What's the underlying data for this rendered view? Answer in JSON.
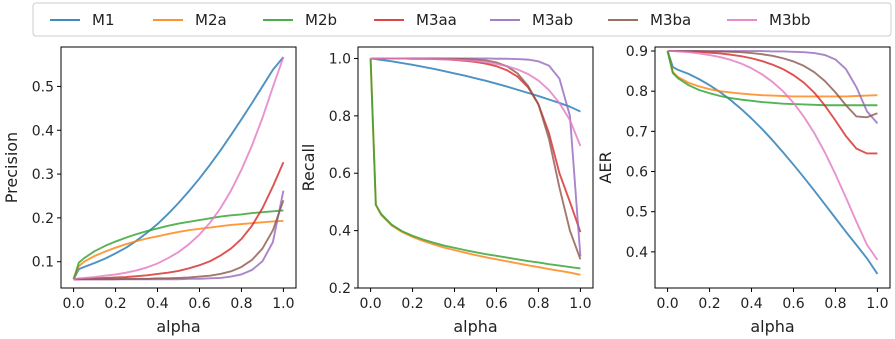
{
  "legend": {
    "entries": [
      {
        "name": "M1",
        "color": "#1f77b4"
      },
      {
        "name": "M2a",
        "color": "#ff7f0e"
      },
      {
        "name": "M2b",
        "color": "#2ca02c"
      },
      {
        "name": "M3aa",
        "color": "#d62728"
      },
      {
        "name": "M3ab",
        "color": "#9467bd"
      },
      {
        "name": "M3ba",
        "color": "#8c564b"
      },
      {
        "name": "M3bb",
        "color": "#e377c2"
      }
    ],
    "placement": "top"
  },
  "chart_data": [
    {
      "type": "line",
      "xlabel": "alpha",
      "ylabel": "Precision",
      "xlim": [
        -0.06,
        1.06
      ],
      "ylim": [
        0.04,
        0.59
      ],
      "xticks": [
        "0.0",
        "0.2",
        "0.4",
        "0.6",
        "0.8",
        "1.0"
      ],
      "xtick_values": [
        0,
        0.2,
        0.4,
        0.6,
        0.8,
        1.0
      ],
      "yticks": [
        "0.1",
        "0.2",
        "0.3",
        "0.4",
        "0.5"
      ],
      "ytick_values": [
        0.1,
        0.2,
        0.3,
        0.4,
        0.5
      ],
      "x": [
        0,
        0.025,
        0.05,
        0.1,
        0.15,
        0.2,
        0.25,
        0.3,
        0.35,
        0.4,
        0.45,
        0.5,
        0.55,
        0.6,
        0.65,
        0.7,
        0.75,
        0.8,
        0.85,
        0.9,
        0.95,
        1.0
      ],
      "series": [
        {
          "name": "M1",
          "values": [
            0.06,
            0.083,
            0.088,
            0.097,
            0.107,
            0.119,
            0.132,
            0.148,
            0.166,
            0.186,
            0.209,
            0.234,
            0.261,
            0.29,
            0.321,
            0.354,
            0.389,
            0.425,
            0.462,
            0.5,
            0.538,
            0.567
          ]
        },
        {
          "name": "M2a",
          "values": [
            0.06,
            0.09,
            0.1,
            0.113,
            0.123,
            0.132,
            0.14,
            0.147,
            0.153,
            0.158,
            0.163,
            0.168,
            0.172,
            0.175,
            0.178,
            0.181,
            0.184,
            0.186,
            0.188,
            0.19,
            0.192,
            0.193
          ]
        },
        {
          "name": "M2b",
          "values": [
            0.06,
            0.098,
            0.108,
            0.124,
            0.136,
            0.146,
            0.155,
            0.163,
            0.17,
            0.176,
            0.182,
            0.187,
            0.191,
            0.195,
            0.199,
            0.203,
            0.206,
            0.208,
            0.211,
            0.213,
            0.215,
            0.217
          ]
        },
        {
          "name": "M3aa",
          "values": [
            0.06,
            0.06,
            0.061,
            0.062,
            0.063,
            0.064,
            0.065,
            0.067,
            0.069,
            0.072,
            0.075,
            0.079,
            0.085,
            0.092,
            0.101,
            0.114,
            0.13,
            0.152,
            0.182,
            0.222,
            0.272,
            0.327
          ]
        },
        {
          "name": "M3ab",
          "values": [
            0.06,
            0.06,
            0.06,
            0.06,
            0.06,
            0.06,
            0.06,
            0.06,
            0.06,
            0.06,
            0.06,
            0.06,
            0.061,
            0.061,
            0.062,
            0.063,
            0.066,
            0.071,
            0.081,
            0.101,
            0.145,
            0.262
          ]
        },
        {
          "name": "M3ba",
          "values": [
            0.06,
            0.06,
            0.06,
            0.06,
            0.06,
            0.06,
            0.061,
            0.061,
            0.061,
            0.062,
            0.062,
            0.063,
            0.064,
            0.066,
            0.068,
            0.072,
            0.078,
            0.088,
            0.104,
            0.13,
            0.172,
            0.24
          ]
        },
        {
          "name": "M3bb",
          "values": [
            0.06,
            0.062,
            0.063,
            0.065,
            0.068,
            0.071,
            0.075,
            0.08,
            0.087,
            0.096,
            0.108,
            0.122,
            0.14,
            0.162,
            0.189,
            0.222,
            0.262,
            0.31,
            0.365,
            0.428,
            0.499,
            0.567
          ]
        }
      ]
    },
    {
      "type": "line",
      "xlabel": "alpha",
      "ylabel": "Recall",
      "xlim": [
        -0.06,
        1.06
      ],
      "ylim": [
        0.2,
        1.04
      ],
      "xticks": [
        "0.0",
        "0.2",
        "0.4",
        "0.6",
        "0.8",
        "1.0"
      ],
      "xtick_values": [
        0,
        0.2,
        0.4,
        0.6,
        0.8,
        1.0
      ],
      "yticks": [
        "0.2",
        "0.4",
        "0.6",
        "0.8",
        "1.0"
      ],
      "ytick_values": [
        0.2,
        0.4,
        0.6,
        0.8,
        1.0
      ],
      "x": [
        0,
        0.025,
        0.05,
        0.1,
        0.15,
        0.2,
        0.25,
        0.3,
        0.35,
        0.4,
        0.45,
        0.5,
        0.55,
        0.6,
        0.65,
        0.7,
        0.75,
        0.8,
        0.85,
        0.9,
        0.95,
        1.0
      ],
      "series": [
        {
          "name": "M1",
          "values": [
            1.0,
            0.998,
            0.995,
            0.99,
            0.984,
            0.978,
            0.971,
            0.964,
            0.956,
            0.948,
            0.94,
            0.931,
            0.922,
            0.912,
            0.902,
            0.891,
            0.88,
            0.869,
            0.857,
            0.845,
            0.832,
            0.815
          ]
        },
        {
          "name": "M2a",
          "values": [
            1.0,
            0.49,
            0.455,
            0.418,
            0.395,
            0.378,
            0.364,
            0.352,
            0.341,
            0.332,
            0.323,
            0.315,
            0.307,
            0.3,
            0.293,
            0.286,
            0.279,
            0.273,
            0.266,
            0.26,
            0.254,
            0.246
          ]
        },
        {
          "name": "M2b",
          "values": [
            1.0,
            0.49,
            0.458,
            0.421,
            0.398,
            0.382,
            0.369,
            0.358,
            0.348,
            0.34,
            0.332,
            0.325,
            0.318,
            0.312,
            0.306,
            0.3,
            0.294,
            0.289,
            0.283,
            0.278,
            0.273,
            0.268
          ]
        },
        {
          "name": "M3aa",
          "values": [
            1.0,
            1.0,
            1.0,
            1.0,
            1.0,
            0.999,
            0.999,
            0.998,
            0.997,
            0.995,
            0.992,
            0.988,
            0.982,
            0.973,
            0.959,
            0.937,
            0.9,
            0.84,
            0.74,
            0.6,
            0.5,
            0.395
          ]
        },
        {
          "name": "M3ab",
          "values": [
            1.0,
            1.0,
            1.0,
            1.0,
            1.0,
            1.0,
            1.0,
            1.0,
            1.0,
            1.0,
            1.0,
            1.0,
            1.0,
            0.999,
            0.999,
            0.998,
            0.996,
            0.99,
            0.975,
            0.93,
            0.8,
            0.31
          ]
        },
        {
          "name": "M3ba",
          "values": [
            1.0,
            1.0,
            1.0,
            1.0,
            1.0,
            1.0,
            1.0,
            1.0,
            0.999,
            0.999,
            0.998,
            0.996,
            0.993,
            0.986,
            0.973,
            0.948,
            0.905,
            0.84,
            0.72,
            0.55,
            0.4,
            0.3
          ]
        },
        {
          "name": "M3bb",
          "values": [
            1.0,
            1.0,
            1.0,
            1.0,
            1.0,
            0.999,
            0.999,
            0.998,
            0.997,
            0.996,
            0.994,
            0.991,
            0.987,
            0.981,
            0.973,
            0.962,
            0.946,
            0.923,
            0.89,
            0.845,
            0.785,
            0.695
          ]
        }
      ]
    },
    {
      "type": "line",
      "xlabel": "alpha",
      "ylabel": "AER",
      "xlim": [
        -0.06,
        1.06
      ],
      "ylim": [
        0.31,
        0.91
      ],
      "xticks": [
        "0.0",
        "0.2",
        "0.4",
        "0.6",
        "0.8",
        "1.0"
      ],
      "xtick_values": [
        0,
        0.2,
        0.4,
        0.6,
        0.8,
        1.0
      ],
      "yticks": [
        "0.4",
        "0.5",
        "0.6",
        "0.7",
        "0.8",
        "0.9"
      ],
      "ytick_values": [
        0.4,
        0.5,
        0.6,
        0.7,
        0.8,
        0.9
      ],
      "x": [
        0,
        0.025,
        0.05,
        0.1,
        0.15,
        0.2,
        0.25,
        0.3,
        0.35,
        0.4,
        0.45,
        0.5,
        0.55,
        0.6,
        0.65,
        0.7,
        0.75,
        0.8,
        0.85,
        0.9,
        0.95,
        1.0
      ],
      "series": [
        {
          "name": "M1",
          "values": [
            0.9,
            0.86,
            0.853,
            0.843,
            0.83,
            0.815,
            0.798,
            0.778,
            0.756,
            0.732,
            0.706,
            0.678,
            0.648,
            0.617,
            0.585,
            0.552,
            0.518,
            0.484,
            0.45,
            0.417,
            0.384,
            0.345
          ]
        },
        {
          "name": "M2a",
          "values": [
            0.9,
            0.848,
            0.835,
            0.821,
            0.812,
            0.805,
            0.8,
            0.797,
            0.794,
            0.792,
            0.79,
            0.789,
            0.788,
            0.787,
            0.787,
            0.787,
            0.787,
            0.787,
            0.787,
            0.788,
            0.789,
            0.79
          ]
        },
        {
          "name": "M2b",
          "values": [
            0.9,
            0.845,
            0.832,
            0.815,
            0.803,
            0.795,
            0.788,
            0.783,
            0.779,
            0.776,
            0.773,
            0.771,
            0.769,
            0.768,
            0.767,
            0.766,
            0.765,
            0.765,
            0.765,
            0.765,
            0.765,
            0.765
          ]
        },
        {
          "name": "M3aa",
          "values": [
            0.9,
            0.9,
            0.9,
            0.899,
            0.898,
            0.896,
            0.894,
            0.891,
            0.887,
            0.882,
            0.875,
            0.866,
            0.855,
            0.84,
            0.821,
            0.796,
            0.764,
            0.727,
            0.688,
            0.657,
            0.645,
            0.645
          ]
        },
        {
          "name": "M3ab",
          "values": [
            0.9,
            0.9,
            0.9,
            0.9,
            0.9,
            0.9,
            0.9,
            0.9,
            0.9,
            0.9,
            0.9,
            0.899,
            0.899,
            0.898,
            0.897,
            0.895,
            0.89,
            0.879,
            0.855,
            0.81,
            0.75,
            0.72
          ]
        },
        {
          "name": "M3ba",
          "values": [
            0.9,
            0.9,
            0.9,
            0.9,
            0.9,
            0.899,
            0.899,
            0.898,
            0.897,
            0.895,
            0.892,
            0.888,
            0.882,
            0.874,
            0.863,
            0.847,
            0.825,
            0.797,
            0.765,
            0.737,
            0.735,
            0.745
          ]
        },
        {
          "name": "M3bb",
          "values": [
            0.9,
            0.9,
            0.899,
            0.897,
            0.894,
            0.89,
            0.885,
            0.878,
            0.869,
            0.857,
            0.842,
            0.823,
            0.8,
            0.771,
            0.736,
            0.695,
            0.647,
            0.593,
            0.535,
            0.475,
            0.418,
            0.38
          ]
        }
      ]
    }
  ]
}
